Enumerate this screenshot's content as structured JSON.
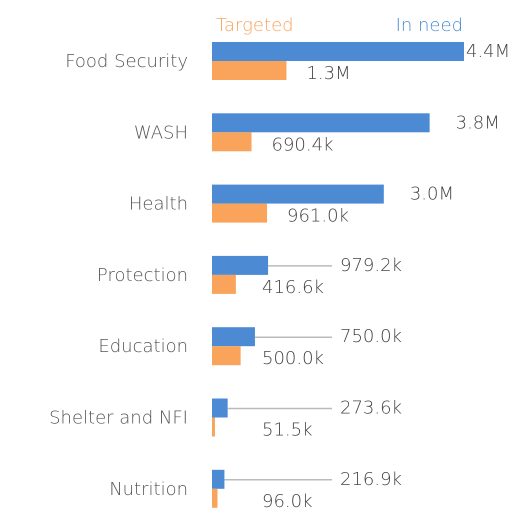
{
  "chart_data": {
    "type": "bar",
    "orientation": "horizontal",
    "categories": [
      "Food Security",
      "WASH",
      "Health",
      "Protection",
      "Education",
      "Shelter and NFI",
      "Nutrition"
    ],
    "series": [
      {
        "name": "In need",
        "color": "#4c8bd4",
        "values": [
          4400000,
          3800000,
          3000000,
          979200,
          750000,
          273600,
          216900
        ],
        "value_labels": [
          "4.4M",
          "3.8M",
          "3.0M",
          "979.2k",
          "750.0k",
          "273.6k",
          "216.9k"
        ]
      },
      {
        "name": "Targeted",
        "color": "#f9a45a",
        "values": [
          1300000,
          690400,
          961000,
          416600,
          500000,
          51500,
          96000
        ],
        "value_labels": [
          "1.3M",
          "690.4k",
          "961.0k",
          "416.6k",
          "500.0k",
          "51.5k",
          "96.0k"
        ]
      }
    ]
  }
}
